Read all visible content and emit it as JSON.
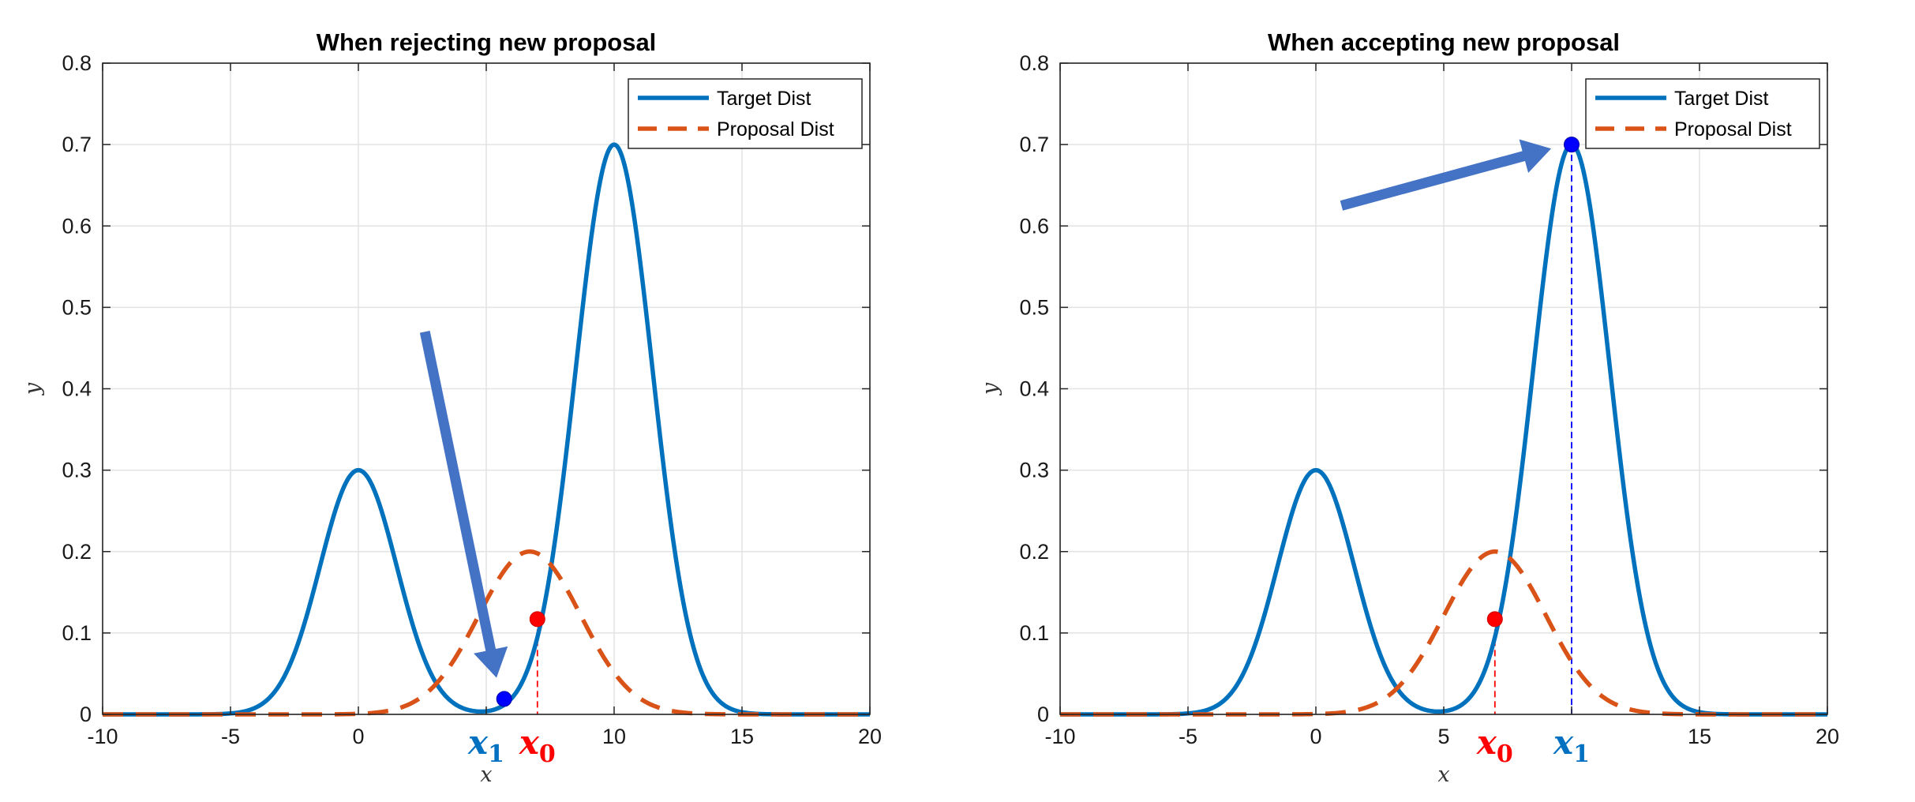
{
  "colors": {
    "target": "#0072BD",
    "proposal": "#D95319",
    "x0_point": "#FF0000",
    "x1_point": "#0000FF",
    "arrow": "#4472C4",
    "x0_label": "#FF0000",
    "x1_label": "#0070C0"
  },
  "chart_data": [
    {
      "type": "line",
      "title": "When rejecting new proposal",
      "xlabel": "x",
      "ylabel": "y",
      "xlim": [
        -10,
        20
      ],
      "ylim": [
        0,
        0.8
      ],
      "xticks": [
        -10,
        -5,
        0,
        5,
        10,
        15,
        20
      ],
      "xtick_labels": [
        "-10",
        "-5",
        "0",
        "",
        "10",
        "15",
        "20"
      ],
      "yticks": [
        0,
        0.1,
        0.2,
        0.3,
        0.4,
        0.5,
        0.6,
        0.7,
        0.8
      ],
      "ytick_labels": [
        "0",
        "0.1",
        "0.2",
        "0.3",
        "0.4",
        "0.5",
        "0.6",
        "0.7",
        "0.8"
      ],
      "grid": true,
      "legend": {
        "position": "top-right",
        "entries": [
          "Target Dist",
          "Proposal Dist"
        ]
      },
      "series": [
        {
          "name": "Target Dist",
          "style": "solid",
          "components": [
            {
              "amp": 0.3,
              "mu": 0,
              "sigma": 1.5
            },
            {
              "amp": 0.7,
              "mu": 10,
              "sigma": 1.5
            }
          ]
        },
        {
          "name": "Proposal Dist",
          "style": "dashed",
          "components": [
            {
              "amp": 0.2,
              "mu": 6.7,
              "sigma": 2
            }
          ]
        }
      ],
      "points": [
        {
          "label": "x0",
          "x": 7.0,
          "y": 0.117,
          "color": "red"
        },
        {
          "label": "x1",
          "x": 5.7,
          "y": 0.019,
          "color": "blue"
        }
      ],
      "markers": [
        {
          "text": "x",
          "sub": "0",
          "x": 7.0,
          "color": "red"
        },
        {
          "text": "x",
          "sub": "1",
          "x": 5.0,
          "color": "blue"
        }
      ],
      "arrow": {
        "from": [
          2.6,
          0.47
        ],
        "to": [
          5.4,
          0.045
        ]
      },
      "dashed_lines": [
        {
          "x": 7.0,
          "y": 0.117,
          "color": "red"
        }
      ]
    },
    {
      "type": "line",
      "title": "When accepting new proposal",
      "xlabel": "x",
      "ylabel": "y",
      "xlim": [
        -10,
        20
      ],
      "ylim": [
        0,
        0.8
      ],
      "xticks": [
        -10,
        -5,
        0,
        5,
        10,
        15,
        20
      ],
      "xtick_labels": [
        "-10",
        "-5",
        "0",
        "5",
        "",
        "15",
        "20"
      ],
      "yticks": [
        0,
        0.1,
        0.2,
        0.3,
        0.4,
        0.5,
        0.6,
        0.7,
        0.8
      ],
      "ytick_labels": [
        "0",
        "0.1",
        "0.2",
        "0.3",
        "0.4",
        "0.5",
        "0.6",
        "0.7",
        "0.8"
      ],
      "grid": true,
      "legend": {
        "position": "top-right",
        "entries": [
          "Target Dist",
          "Proposal Dist"
        ]
      },
      "series": [
        {
          "name": "Target Dist",
          "style": "solid",
          "components": [
            {
              "amp": 0.3,
              "mu": 0,
              "sigma": 1.5
            },
            {
              "amp": 0.7,
              "mu": 10,
              "sigma": 1.5
            }
          ]
        },
        {
          "name": "Proposal Dist",
          "style": "dashed",
          "components": [
            {
              "amp": 0.2,
              "mu": 7.0,
              "sigma": 2
            }
          ]
        }
      ],
      "points": [
        {
          "label": "x0",
          "x": 7.0,
          "y": 0.117,
          "color": "red"
        },
        {
          "label": "x1",
          "x": 10.0,
          "y": 0.7,
          "color": "blue"
        }
      ],
      "markers": [
        {
          "text": "x",
          "sub": "0",
          "x": 7.0,
          "color": "red"
        },
        {
          "text": "x",
          "sub": "1",
          "x": 10.0,
          "color": "blue"
        }
      ],
      "arrow": {
        "from": [
          1.0,
          0.625
        ],
        "to": [
          9.2,
          0.695
        ]
      },
      "dashed_lines": [
        {
          "x": 7.0,
          "y": 0.117,
          "color": "red"
        },
        {
          "x": 10.0,
          "y": 0.7,
          "color": "blue"
        }
      ]
    }
  ]
}
